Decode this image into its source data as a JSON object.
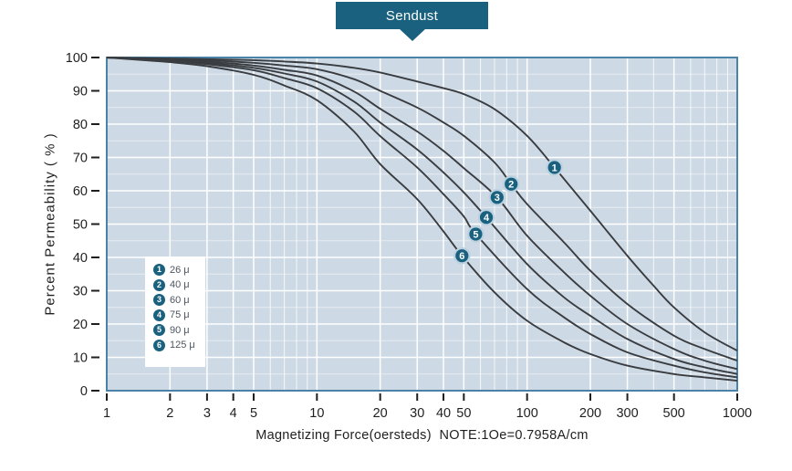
{
  "banner": {
    "label": "Sendust"
  },
  "colors": {
    "accent": "#19617f",
    "plot_bg": "#cdd9e4",
    "plot_border": "#4a82a8",
    "grid_major": "#ffffff",
    "grid_minor": "#ffffff",
    "curve": "#393c40",
    "marker_fill": "#19617f",
    "marker_ring": "#bdd2e0",
    "tick_text": "#1f1f1f",
    "legend_text": "#4d5560",
    "banner_text": "#ffffff"
  },
  "axes": {
    "x_title": "Magnetizing Force(oersteds)  NOTE:1Oe=0.7958A/cm",
    "y_title": "Percent Permeability ( % )"
  },
  "chart_data": {
    "type": "line",
    "title": "Sendust",
    "xlabel": "Magnetizing Force(oersteds)  NOTE:1Oe=0.7958A/cm",
    "ylabel": "Percent Permeability ( % )",
    "x_scale": "log",
    "xlim": [
      1,
      1000
    ],
    "ylim": [
      0,
      100
    ],
    "x_ticks": [
      1,
      2,
      3,
      4,
      5,
      10,
      20,
      30,
      40,
      50,
      100,
      200,
      300,
      500,
      1000
    ],
    "y_tick_step": 10,
    "y_minor_step": 5,
    "grid": true,
    "legend_position": "inside-left",
    "series": [
      {
        "num": 1,
        "name": "26 μ",
        "marker_at": [
          135,
          67
        ],
        "points": [
          [
            1,
            100
          ],
          [
            2,
            99.7
          ],
          [
            3,
            99.5
          ],
          [
            5,
            99.2
          ],
          [
            7,
            98.8
          ],
          [
            10,
            98.2
          ],
          [
            15,
            96.9
          ],
          [
            20,
            95.5
          ],
          [
            30,
            92.8
          ],
          [
            40,
            90.8
          ],
          [
            50,
            89
          ],
          [
            70,
            84.5
          ],
          [
            100,
            76.5
          ],
          [
            135,
            67
          ],
          [
            200,
            54
          ],
          [
            300,
            40.5
          ],
          [
            400,
            31.5
          ],
          [
            500,
            25
          ],
          [
            700,
            17.5
          ],
          [
            1000,
            12
          ]
        ]
      },
      {
        "num": 2,
        "name": "40 μ",
        "marker_at": [
          84,
          62
        ],
        "points": [
          [
            1,
            100
          ],
          [
            2,
            99.6
          ],
          [
            3,
            99.2
          ],
          [
            5,
            98.4
          ],
          [
            7,
            97.6
          ],
          [
            10,
            96.5
          ],
          [
            15,
            93.5
          ],
          [
            20,
            90
          ],
          [
            30,
            85
          ],
          [
            40,
            80.5
          ],
          [
            50,
            76.5
          ],
          [
            70,
            68.5
          ],
          [
            84,
            62
          ],
          [
            100,
            56
          ],
          [
            150,
            44.5
          ],
          [
            200,
            36
          ],
          [
            300,
            26
          ],
          [
            500,
            16.5
          ],
          [
            700,
            12.5
          ],
          [
            1000,
            9
          ]
        ]
      },
      {
        "num": 3,
        "name": "60 μ",
        "marker_at": [
          72,
          58
        ],
        "points": [
          [
            1,
            100
          ],
          [
            2,
            99.4
          ],
          [
            3,
            98.8
          ],
          [
            5,
            97.6
          ],
          [
            7,
            96.3
          ],
          [
            10,
            94.6
          ],
          [
            15,
            89.8
          ],
          [
            20,
            84.6
          ],
          [
            30,
            77.8
          ],
          [
            40,
            72
          ],
          [
            50,
            66.8
          ],
          [
            72,
            58
          ],
          [
            100,
            46.5
          ],
          [
            150,
            35.5
          ],
          [
            200,
            28.5
          ],
          [
            300,
            20
          ],
          [
            500,
            12.5
          ],
          [
            700,
            9
          ],
          [
            1000,
            6.5
          ]
        ]
      },
      {
        "num": 4,
        "name": "75 μ",
        "marker_at": [
          64,
          52
        ],
        "points": [
          [
            1,
            100
          ],
          [
            2,
            99.2
          ],
          [
            3,
            98.4
          ],
          [
            5,
            96.9
          ],
          [
            7,
            95.2
          ],
          [
            10,
            92.8
          ],
          [
            15,
            86.8
          ],
          [
            20,
            80.5
          ],
          [
            30,
            72.4
          ],
          [
            40,
            65.5
          ],
          [
            50,
            59.5
          ],
          [
            64,
            52
          ],
          [
            100,
            38
          ],
          [
            150,
            28
          ],
          [
            200,
            22.5
          ],
          [
            300,
            15.5
          ],
          [
            500,
            9.5
          ],
          [
            700,
            7
          ],
          [
            1000,
            5
          ]
        ]
      },
      {
        "num": 5,
        "name": "90 μ",
        "marker_at": [
          57,
          47
        ],
        "points": [
          [
            1,
            100
          ],
          [
            2,
            99
          ],
          [
            3,
            98
          ],
          [
            5,
            96.2
          ],
          [
            7,
            93.8
          ],
          [
            10,
            90.8
          ],
          [
            15,
            83.8
          ],
          [
            20,
            76.4
          ],
          [
            30,
            67
          ],
          [
            40,
            59
          ],
          [
            50,
            52.3
          ],
          [
            57,
            47
          ],
          [
            100,
            30.5
          ],
          [
            150,
            22
          ],
          [
            200,
            17
          ],
          [
            300,
            11.5
          ],
          [
            500,
            7.5
          ],
          [
            700,
            5.5
          ],
          [
            1000,
            4
          ]
        ]
      },
      {
        "num": 6,
        "name": "125 μ",
        "marker_at": [
          49,
          40.5
        ],
        "points": [
          [
            1,
            100
          ],
          [
            2,
            98.6
          ],
          [
            3,
            97.4
          ],
          [
            5,
            94.8
          ],
          [
            7,
            91.6
          ],
          [
            10,
            87.2
          ],
          [
            15,
            77.8
          ],
          [
            20,
            68
          ],
          [
            30,
            57.5
          ],
          [
            40,
            47.8
          ],
          [
            49,
            40.5
          ],
          [
            70,
            29.5
          ],
          [
            100,
            21
          ],
          [
            150,
            14.5
          ],
          [
            200,
            11
          ],
          [
            300,
            7.5
          ],
          [
            500,
            5
          ],
          [
            700,
            4
          ],
          [
            1000,
            3
          ]
        ]
      }
    ]
  }
}
